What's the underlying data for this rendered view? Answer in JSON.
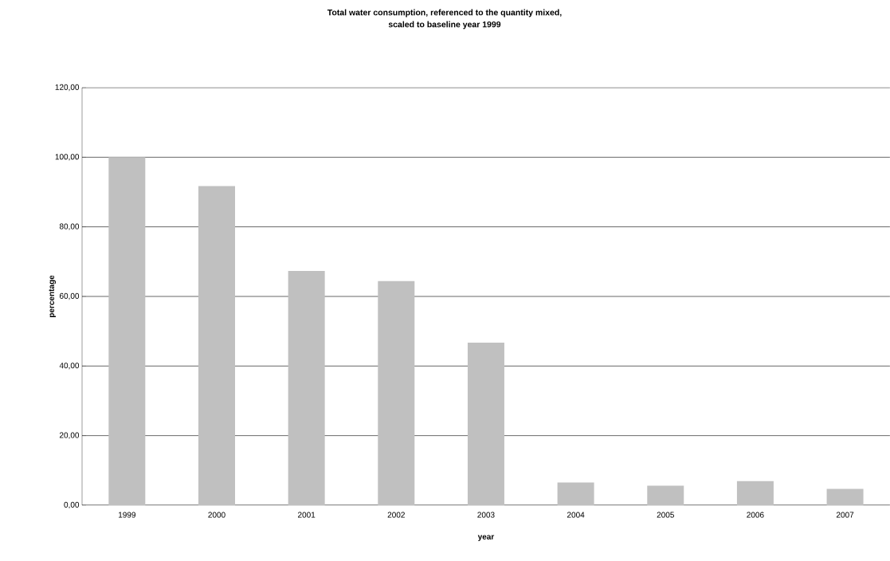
{
  "chart_data": {
    "type": "bar",
    "title": "Total water consumption, referenced to the quantity mixed,\nscaled to baseline year 1999",
    "xlabel": "year",
    "ylabel": "percentage",
    "categories": [
      "1999",
      "2000",
      "2001",
      "2002",
      "2003",
      "2004",
      "2005",
      "2006",
      "2007"
    ],
    "values": [
      100,
      91.7,
      67.3,
      64.4,
      46.7,
      6.5,
      5.6,
      6.9,
      4.7
    ],
    "color": "#c0c0c0",
    "ylim": [
      0,
      120
    ],
    "yticks": [
      {
        "value": 0,
        "label": "0,00"
      },
      {
        "value": 20,
        "label": "20,00"
      },
      {
        "value": 40,
        "label": "40,00"
      },
      {
        "value": 60,
        "label": "60,00"
      },
      {
        "value": 80,
        "label": "80,00"
      },
      {
        "value": 100,
        "label": "100,00"
      },
      {
        "value": 120,
        "label": "120,00"
      }
    ],
    "grid": "y"
  }
}
